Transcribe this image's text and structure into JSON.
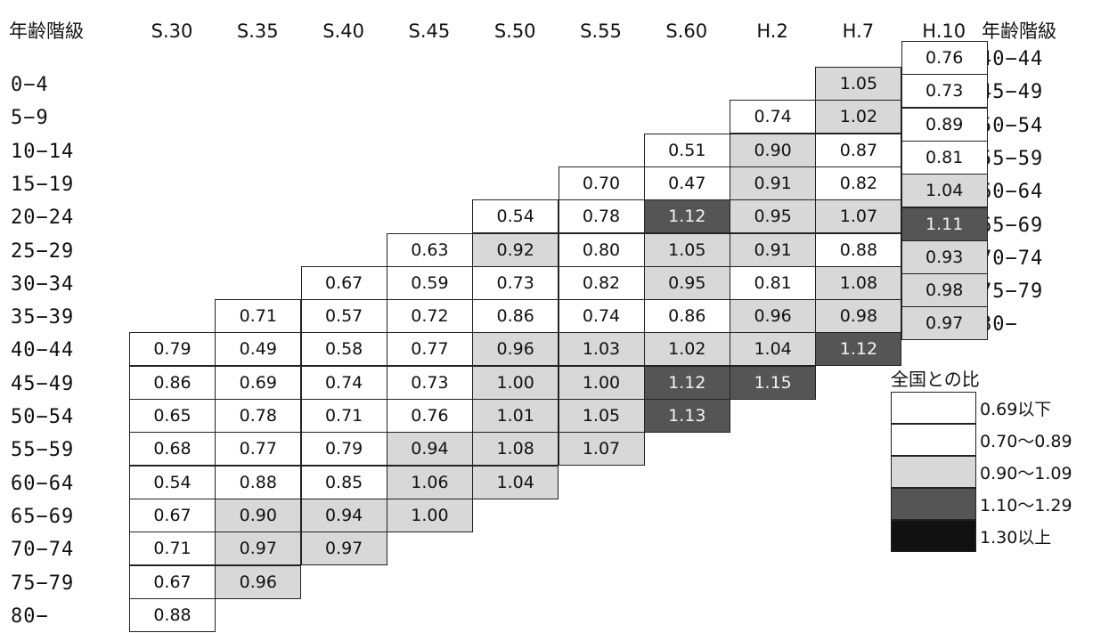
{
  "chart_data": {
    "type": "heatmap",
    "corner_label_left": "年齢階級",
    "corner_label_right": "年齢階級",
    "columns": [
      "S.30",
      "S.35",
      "S.40",
      "S.45",
      "S.50",
      "S.55",
      "S.60",
      "H.2",
      "H.7",
      "H.10"
    ],
    "row_labels": [
      "0−4",
      "5−9",
      "10−14",
      "15−19",
      "20−24",
      "25−29",
      "30−34",
      "35−39",
      "40−44",
      "45−49",
      "50−54",
      "55−59",
      "60−64",
      "65−69",
      "70−74",
      "75−79",
      "80−"
    ],
    "h10_labels": [
      "40−44",
      "45−49",
      "50−54",
      "55−59",
      "60−64",
      "65−69",
      "70−74",
      "75−79",
      "80−"
    ],
    "values": {
      "S.30": [
        "0.79",
        "0.86",
        "0.65",
        "0.68",
        "0.54",
        "0.67",
        "0.71",
        "0.67",
        "0.88"
      ],
      "S.35": [
        "0.71",
        "0.49",
        "0.69",
        "0.78",
        "0.77",
        "0.88",
        "0.90",
        "0.97",
        "0.96"
      ],
      "S.40": [
        "0.67",
        "0.57",
        "0.58",
        "0.74",
        "0.71",
        "0.79",
        "0.85",
        "0.94",
        "0.97"
      ],
      "S.45": [
        "0.63",
        "0.59",
        "0.72",
        "0.77",
        "0.73",
        "0.76",
        "0.94",
        "1.06",
        "1.00"
      ],
      "S.50": [
        "0.54",
        "0.92",
        "0.73",
        "0.86",
        "0.96",
        "1.00",
        "1.01",
        "1.08",
        "1.04"
      ],
      "S.55": [
        "0.70",
        "0.78",
        "0.80",
        "0.82",
        "0.74",
        "1.03",
        "1.00",
        "1.05",
        "1.07"
      ],
      "S.60": [
        "0.51",
        "0.47",
        "1.12",
        "1.05",
        "0.95",
        "0.86",
        "1.02",
        "1.12",
        "1.13"
      ],
      "H.2": [
        "0.74",
        "0.90",
        "0.91",
        "0.95",
        "0.91",
        "0.81",
        "0.96",
        "1.04",
        "1.15"
      ],
      "H.7": [
        "1.05",
        "1.02",
        "0.87",
        "0.82",
        "1.07",
        "0.88",
        "1.08",
        "0.98",
        "1.12"
      ],
      "H.10": [
        "0.76",
        "0.73",
        "0.89",
        "0.81",
        "1.04",
        "1.11",
        "0.93",
        "0.98",
        "0.97"
      ]
    },
    "legend": {
      "title": "全国との比",
      "items": [
        {
          "label": "0.69以下",
          "color": "#ffffff"
        },
        {
          "label": "0.70～0.89",
          "color": "#ffffff"
        },
        {
          "label": "0.90～1.09",
          "color": "#d8d8d8"
        },
        {
          "label": "1.10～1.29",
          "color": "#555555"
        },
        {
          "label": "1.30以上",
          "color": "#111111"
        }
      ]
    }
  }
}
